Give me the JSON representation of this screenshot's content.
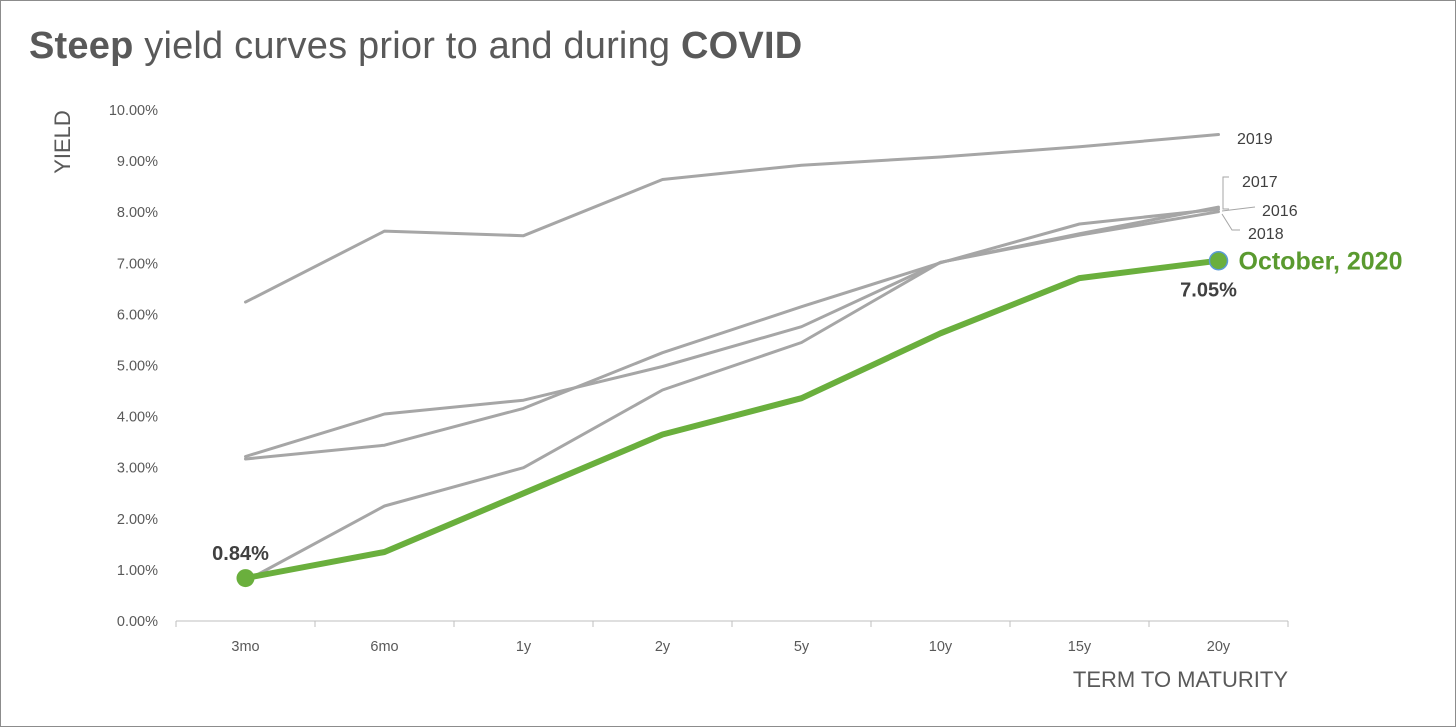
{
  "title": {
    "part1_bold": "Steep",
    "part2": " yield curves prior to and during ",
    "part3_bold": "COVID"
  },
  "chart_data": {
    "type": "line",
    "title": "Steep yield curves prior to and during COVID",
    "xlabel": "TERM TO MATURITY",
    "ylabel": "YIELD",
    "categories": [
      "3mo",
      "6mo",
      "1y",
      "2y",
      "5y",
      "10y",
      "15y",
      "20y"
    ],
    "ylim": [
      0,
      10
    ],
    "yticks": [
      "0.00%",
      "1.00%",
      "2.00%",
      "3.00%",
      "4.00%",
      "5.00%",
      "6.00%",
      "7.00%",
      "8.00%",
      "9.00%",
      "10.00%"
    ],
    "series": [
      {
        "name": "2019",
        "color": "#a6a6a6",
        "values": [
          6.24,
          7.63,
          7.54,
          8.64,
          8.92,
          9.08,
          9.28,
          9.52
        ]
      },
      {
        "name": "2017",
        "color": "#a6a6a6",
        "values": [
          3.22,
          4.05,
          4.32,
          4.98,
          5.76,
          7.02,
          7.58,
          8.1
        ]
      },
      {
        "name": "2016",
        "color": "#a6a6a6",
        "values": [
          3.17,
          3.44,
          4.16,
          5.25,
          6.15,
          7.01,
          7.77,
          8.06
        ]
      },
      {
        "name": "2018",
        "color": "#a6a6a6",
        "values": [
          0.78,
          2.25,
          3.0,
          4.52,
          5.45,
          7.02,
          7.55,
          8.01
        ]
      },
      {
        "name": "October, 2020",
        "color": "#6aaf3d",
        "values": [
          0.84,
          1.35,
          2.5,
          3.65,
          4.36,
          5.63,
          6.71,
          7.05
        ],
        "highlight": true
      }
    ],
    "annotations": {
      "start_value": "0.84%",
      "end_value": "7.05%",
      "end_label": "October, 2020"
    }
  }
}
